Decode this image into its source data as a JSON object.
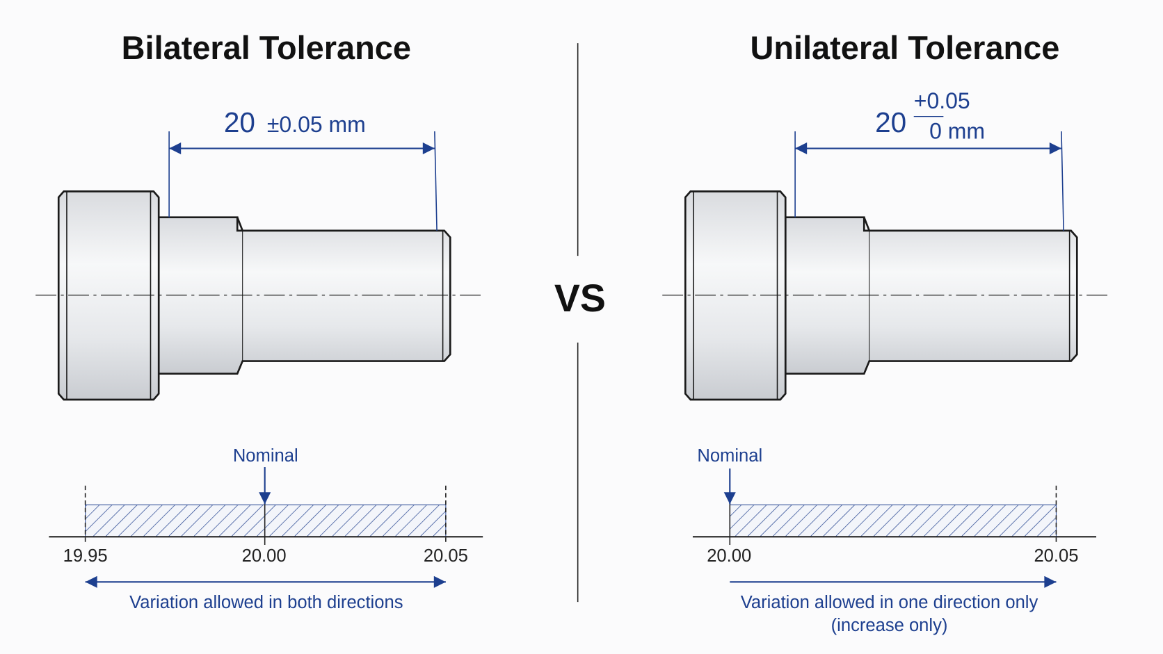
{
  "left": {
    "title": "Bilateral Tolerance",
    "dimension": {
      "nominal": "20",
      "tolerance": "±0.05 mm"
    },
    "scale": {
      "marker": "Nominal",
      "ticks": [
        "19.95",
        "20.00",
        "20.05"
      ],
      "caption": [
        "Variation allowed in both directions"
      ]
    }
  },
  "divider": "VS",
  "right": {
    "title": "Unilateral Tolerance",
    "dimension": {
      "nominal": "20",
      "upper": "+0.05",
      "lower": "0 mm"
    },
    "scale": {
      "marker": "Nominal",
      "ticks": [
        "20.00",
        "20.05"
      ],
      "caption": [
        "Variation allowed in one direction only",
        "(increase only)"
      ]
    }
  }
}
